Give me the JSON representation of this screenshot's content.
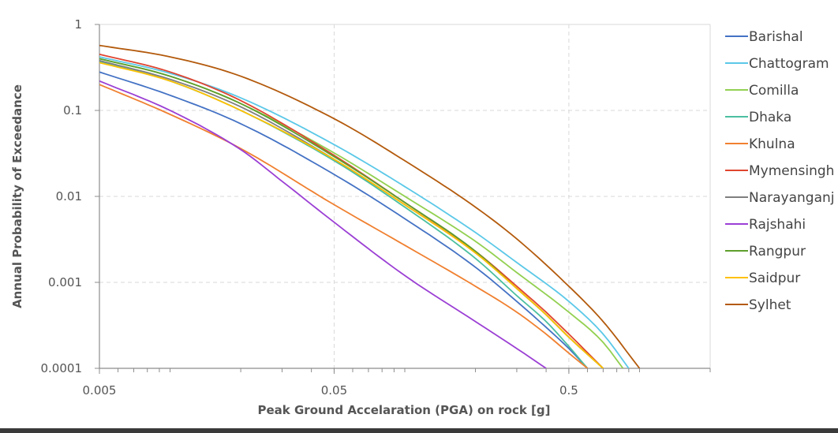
{
  "chart_data": {
    "type": "line",
    "title": "",
    "xlabel": "Peak Ground Accelaration (PGA) on rock [g]",
    "ylabel": "Annual Probability of Exceedance",
    "x_scale": "log",
    "y_scale": "log",
    "xlim": [
      0.005,
      2.0
    ],
    "ylim": [
      0.0001,
      1
    ],
    "x_ticks": [
      {
        "value": 0.005,
        "label": "0.005"
      },
      {
        "value": 0.05,
        "label": "0.05"
      },
      {
        "value": 0.5,
        "label": "0.5"
      }
    ],
    "y_ticks": [
      {
        "value": 0.0001,
        "label": "0.0001"
      },
      {
        "value": 0.001,
        "label": "0.001"
      },
      {
        "value": 0.01,
        "label": "0.01"
      },
      {
        "value": 0.1,
        "label": "0.1"
      },
      {
        "value": 1,
        "label": "1"
      }
    ],
    "grid": true,
    "legend_position": "right",
    "series": [
      {
        "name": "Barishal",
        "color": "#4472C4",
        "x": [
          0.005,
          0.01,
          0.02,
          0.05,
          0.1,
          0.2,
          0.3,
          0.4,
          0.5,
          0.6
        ],
        "y": [
          0.28,
          0.15,
          0.07,
          0.018,
          0.0055,
          0.0015,
          0.0006,
          0.0003,
          0.00017,
          0.0001
        ]
      },
      {
        "name": "Chattogram",
        "color": "#5BC8E8",
        "x": [
          0.005,
          0.01,
          0.02,
          0.05,
          0.1,
          0.2,
          0.3,
          0.5,
          0.7,
          0.9
        ],
        "y": [
          0.42,
          0.27,
          0.14,
          0.04,
          0.013,
          0.0038,
          0.0017,
          0.0006,
          0.00025,
          0.0001
        ]
      },
      {
        "name": "Comilla",
        "color": "#92D050",
        "x": [
          0.005,
          0.01,
          0.02,
          0.05,
          0.1,
          0.2,
          0.3,
          0.5,
          0.7,
          0.85
        ],
        "y": [
          0.4,
          0.25,
          0.12,
          0.032,
          0.01,
          0.003,
          0.0013,
          0.00045,
          0.0002,
          0.0001
        ]
      },
      {
        "name": "Dhaka",
        "color": "#4BBFA0",
        "x": [
          0.005,
          0.01,
          0.02,
          0.05,
          0.1,
          0.2,
          0.3,
          0.4,
          0.5,
          0.6
        ],
        "y": [
          0.37,
          0.22,
          0.1,
          0.026,
          0.0075,
          0.0019,
          0.0007,
          0.00035,
          0.00018,
          0.0001
        ]
      },
      {
        "name": "Khulna",
        "color": "#F08030",
        "x": [
          0.005,
          0.01,
          0.02,
          0.05,
          0.1,
          0.2,
          0.3,
          0.4,
          0.5,
          0.6
        ],
        "y": [
          0.2,
          0.09,
          0.036,
          0.008,
          0.0027,
          0.0009,
          0.00045,
          0.00025,
          0.00015,
          0.0001
        ]
      },
      {
        "name": "Mymensingh",
        "color": "#E04530",
        "x": [
          0.005,
          0.01,
          0.02,
          0.05,
          0.1,
          0.2,
          0.3,
          0.4,
          0.5,
          0.7
        ],
        "y": [
          0.45,
          0.28,
          0.13,
          0.03,
          0.0085,
          0.0023,
          0.0009,
          0.00045,
          0.00025,
          0.0001
        ]
      },
      {
        "name": "Narayanganj",
        "color": "#7F7F7F",
        "x": [
          0.005,
          0.01,
          0.02,
          0.05,
          0.1,
          0.2,
          0.3,
          0.4,
          0.5,
          0.7
        ],
        "y": [
          0.38,
          0.23,
          0.11,
          0.027,
          0.008,
          0.0022,
          0.00085,
          0.00042,
          0.00023,
          0.0001
        ]
      },
      {
        "name": "Rajshahi",
        "color": "#9B3FD4",
        "x": [
          0.005,
          0.01,
          0.02,
          0.03,
          0.05,
          0.1,
          0.2,
          0.3,
          0.4
        ],
        "y": [
          0.22,
          0.1,
          0.035,
          0.015,
          0.005,
          0.0012,
          0.00035,
          0.00017,
          0.0001
        ]
      },
      {
        "name": "Rangpur",
        "color": "#5E9E2C",
        "x": [
          0.005,
          0.01,
          0.02,
          0.05,
          0.1,
          0.2,
          0.3,
          0.4,
          0.5,
          0.7
        ],
        "y": [
          0.4,
          0.25,
          0.12,
          0.029,
          0.0085,
          0.0023,
          0.00085,
          0.00042,
          0.00023,
          0.0001
        ]
      },
      {
        "name": "Saidpur",
        "color": "#FFC000",
        "x": [
          0.005,
          0.01,
          0.02,
          0.05,
          0.1,
          0.2,
          0.3,
          0.4,
          0.5,
          0.7
        ],
        "y": [
          0.36,
          0.22,
          0.1,
          0.027,
          0.008,
          0.0022,
          0.00085,
          0.00042,
          0.00023,
          0.0001
        ]
      },
      {
        "name": "Sylhet",
        "color": "#B35A0C",
        "x": [
          0.005,
          0.01,
          0.02,
          0.05,
          0.1,
          0.2,
          0.3,
          0.5,
          0.7,
          1.0
        ],
        "y": [
          0.57,
          0.42,
          0.25,
          0.08,
          0.026,
          0.0075,
          0.0032,
          0.0009,
          0.00035,
          0.0001
        ]
      }
    ]
  }
}
